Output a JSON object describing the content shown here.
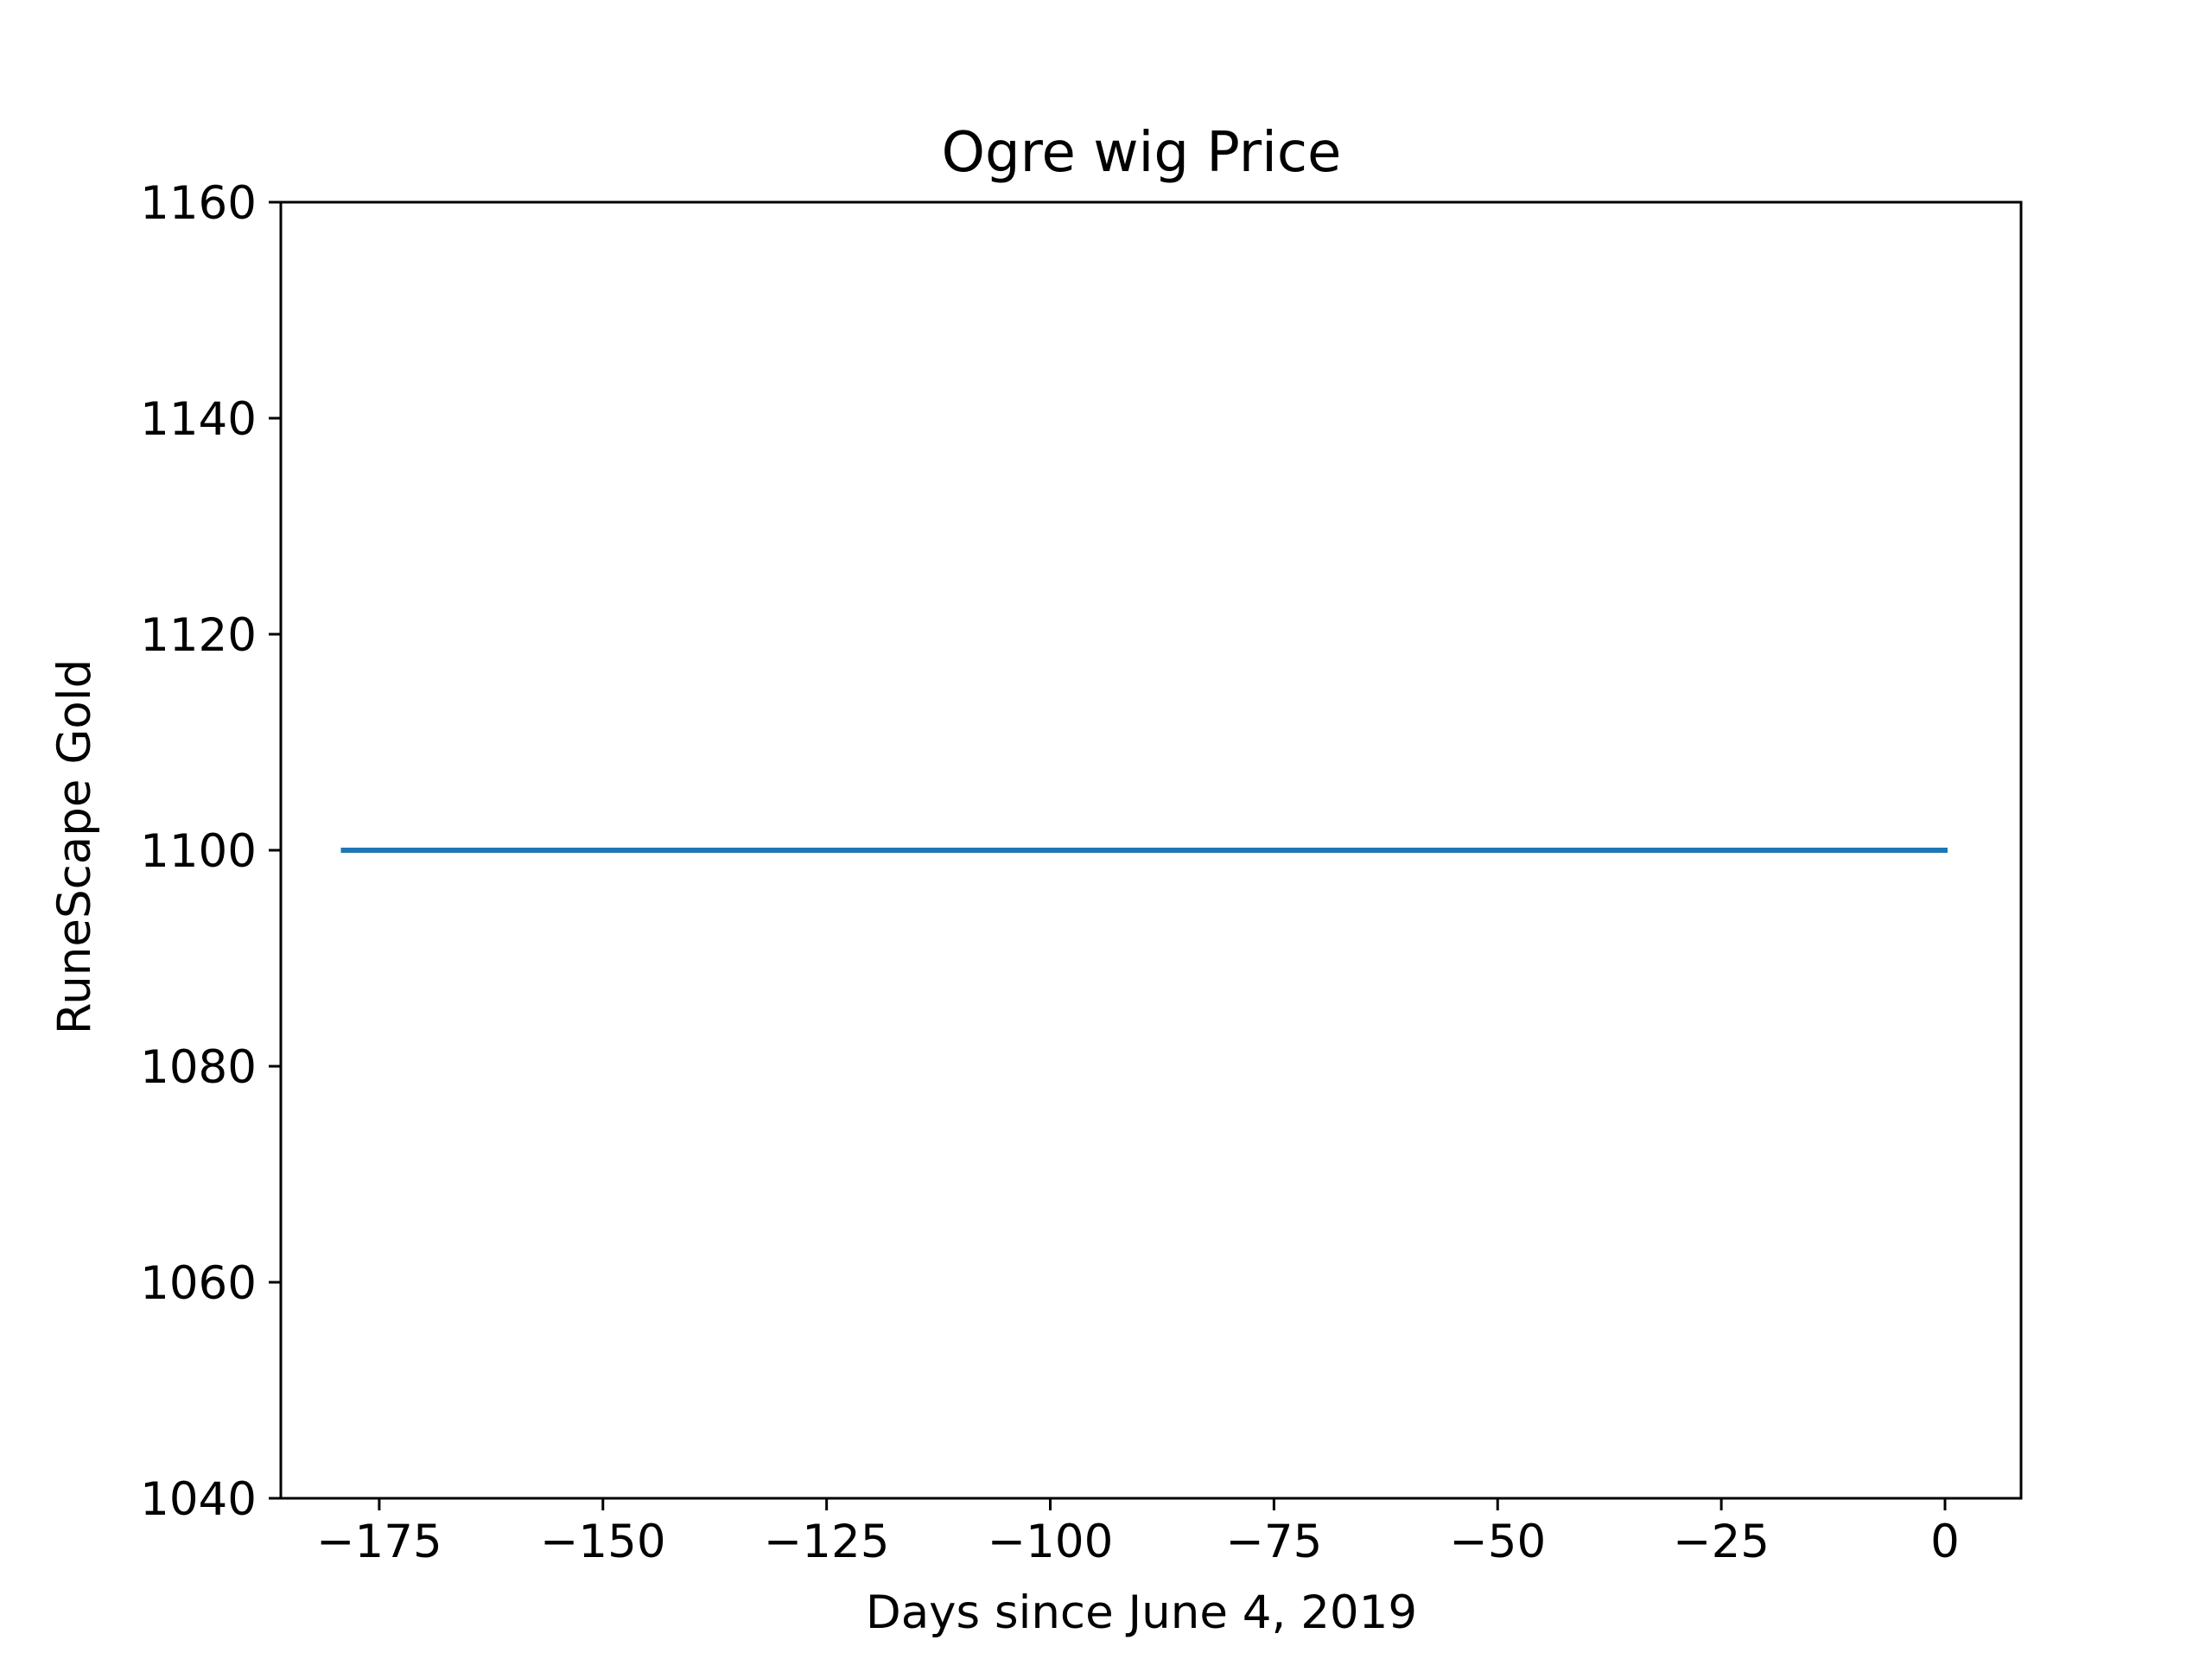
{
  "chart_data": {
    "type": "line",
    "title": "Ogre wig Price",
    "xlabel": "Days since June 4, 2019",
    "ylabel": "RuneScape Gold",
    "xlim": [
      -186,
      8.5
    ],
    "ylim": [
      1040,
      1160
    ],
    "x_ticks": [
      -175,
      -150,
      -125,
      -100,
      -75,
      -50,
      -25,
      0
    ],
    "x_tick_labels": [
      "−175",
      "−150",
      "−125",
      "−100",
      "−75",
      "−50",
      "−25",
      "0"
    ],
    "y_ticks": [
      1040,
      1060,
      1080,
      1100,
      1120,
      1140,
      1160
    ],
    "y_tick_labels": [
      "1040",
      "1060",
      "1080",
      "1100",
      "1120",
      "1140",
      "1160"
    ],
    "grid": false,
    "legend": "none",
    "series": [
      {
        "color": "#1f77b4",
        "x": [
          -179,
          0
        ],
        "y": [
          1100,
          1100
        ]
      }
    ]
  }
}
